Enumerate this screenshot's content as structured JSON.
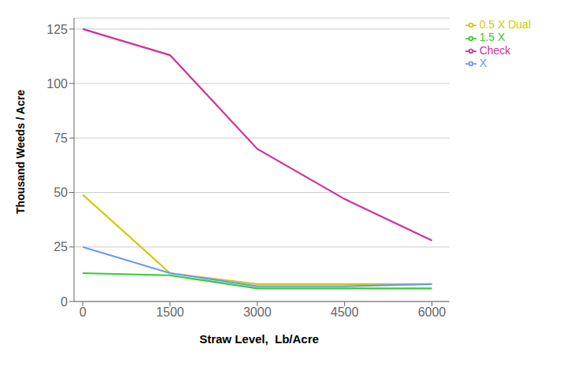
{
  "chart_data": {
    "type": "line",
    "xlabel": "Straw Level,  Lb/Acre",
    "ylabel": "Thousand Weeds / Acre",
    "x": [
      0,
      1500,
      3000,
      4500,
      6000
    ],
    "series": [
      {
        "name": "Check",
        "color": "#cc3399",
        "values": [
          125,
          113,
          70,
          47,
          28
        ]
      },
      {
        "name": "0.5 X Dual",
        "color": "#cccc00",
        "values": [
          49,
          13,
          8,
          8,
          8
        ]
      },
      {
        "name": "X",
        "color": "#6699ff",
        "values": [
          25,
          13,
          7,
          7,
          8
        ]
      },
      {
        "name": "1.5 X",
        "color": "#33cc33",
        "values": [
          13,
          12,
          6,
          6,
          6
        ]
      }
    ],
    "xlim": [
      -150,
      6300
    ],
    "ylim": [
      0,
      130
    ],
    "xticks": [
      0,
      1500,
      3000,
      4500,
      6000
    ],
    "yticks": [
      0,
      25,
      50,
      75,
      100,
      125
    ],
    "grid": true,
    "legend": "right"
  }
}
